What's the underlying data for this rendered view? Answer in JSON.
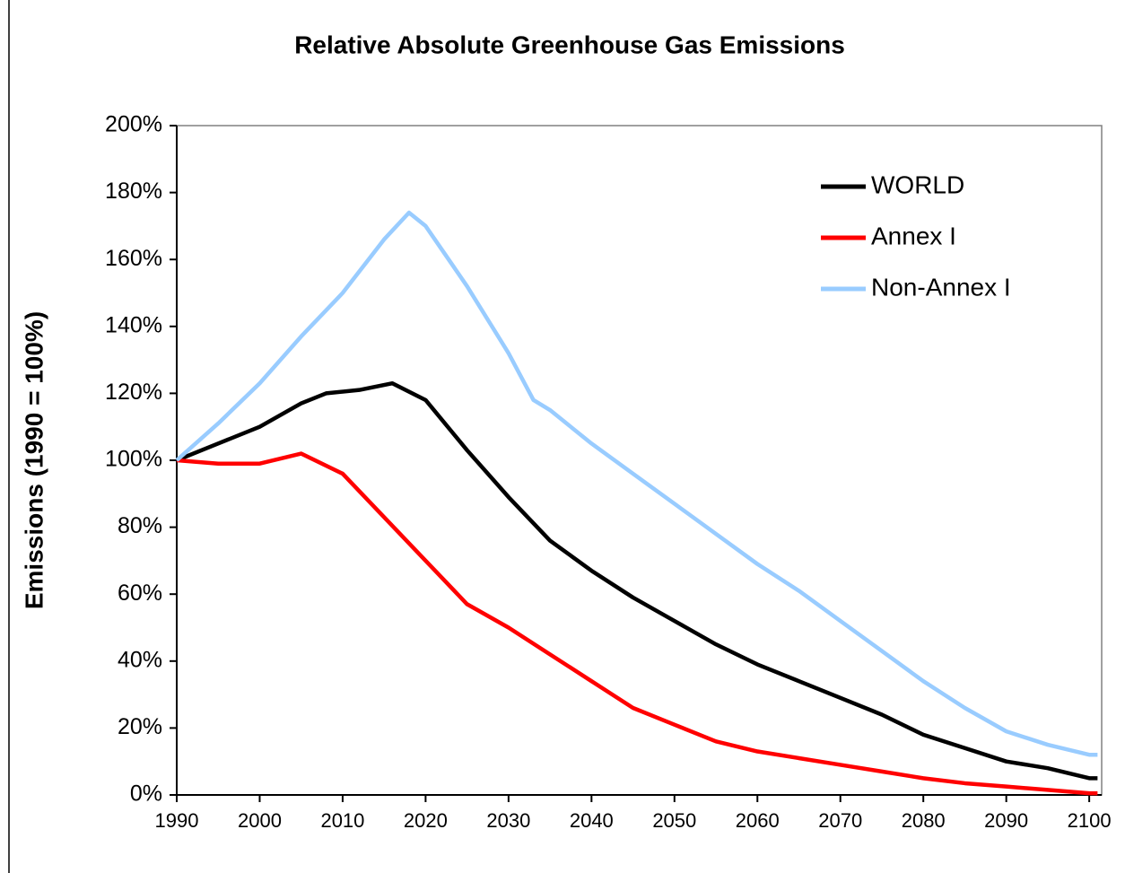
{
  "chart_data": {
    "type": "line",
    "title": "Relative Absolute Greenhouse Gas Emissions",
    "y_label": "Emissions (1990 = 100%)",
    "xlim": [
      1990,
      2101.5
    ],
    "xticks": [
      1990,
      2000,
      2010,
      2020,
      2030,
      2040,
      2050,
      2060,
      2070,
      2080,
      2090,
      2100
    ],
    "ylim": [
      0,
      200
    ],
    "yticks": [
      {
        "value": 0,
        "label": "0%"
      },
      {
        "value": 20,
        "label": "20%"
      },
      {
        "value": 40,
        "label": "40%"
      },
      {
        "value": 60,
        "label": "60%"
      },
      {
        "value": 80,
        "label": "80%"
      },
      {
        "value": 100,
        "label": "100%"
      },
      {
        "value": 120,
        "label": "120%"
      },
      {
        "value": 140,
        "label": "140%"
      },
      {
        "value": 160,
        "label": "160%"
      },
      {
        "value": 180,
        "label": "180%"
      },
      {
        "value": 200,
        "label": "200%"
      }
    ],
    "legend": "upper right",
    "series": [
      {
        "name": "WORLD",
        "color": "#000000",
        "x": [
          1990,
          1995,
          2000,
          2005,
          2008,
          2012,
          2016,
          2020,
          2025,
          2030,
          2035,
          2040,
          2045,
          2050,
          2055,
          2060,
          2065,
          2070,
          2075,
          2080,
          2085,
          2090,
          2095,
          2100,
          2101
        ],
        "values": [
          100,
          105,
          110,
          117,
          120,
          121,
          123,
          118,
          103,
          89,
          76,
          67,
          59,
          52,
          45,
          39,
          34,
          29,
          24,
          18,
          14,
          10,
          8,
          5,
          5
        ]
      },
      {
        "name": "Annex I",
        "color": "#ff0000",
        "x": [
          1990,
          1995,
          2000,
          2005,
          2010,
          2015,
          2020,
          2025,
          2030,
          2035,
          2040,
          2045,
          2050,
          2055,
          2060,
          2065,
          2070,
          2075,
          2080,
          2085,
          2090,
          2095,
          2100,
          2101
        ],
        "values": [
          100,
          99,
          99,
          102,
          96,
          83,
          70,
          57,
          50,
          42,
          34,
          26,
          21,
          16,
          13,
          11,
          9,
          7,
          5,
          3.5,
          2.5,
          1.5,
          0.5,
          0.5
        ]
      },
      {
        "name": "Non-Annex I",
        "color": "#99ccff",
        "x": [
          1990,
          1995,
          2000,
          2005,
          2010,
          2015,
          2018,
          2020,
          2025,
          2030,
          2033,
          2035,
          2040,
          2045,
          2050,
          2055,
          2060,
          2065,
          2070,
          2075,
          2080,
          2085,
          2090,
          2095,
          2100,
          2101
        ],
        "values": [
          100,
          111,
          123,
          137,
          150,
          166,
          174,
          170,
          152,
          132,
          118,
          115,
          105,
          96,
          87,
          78,
          69,
          61,
          52,
          43,
          34,
          26,
          19,
          15,
          12,
          12
        ]
      }
    ]
  }
}
